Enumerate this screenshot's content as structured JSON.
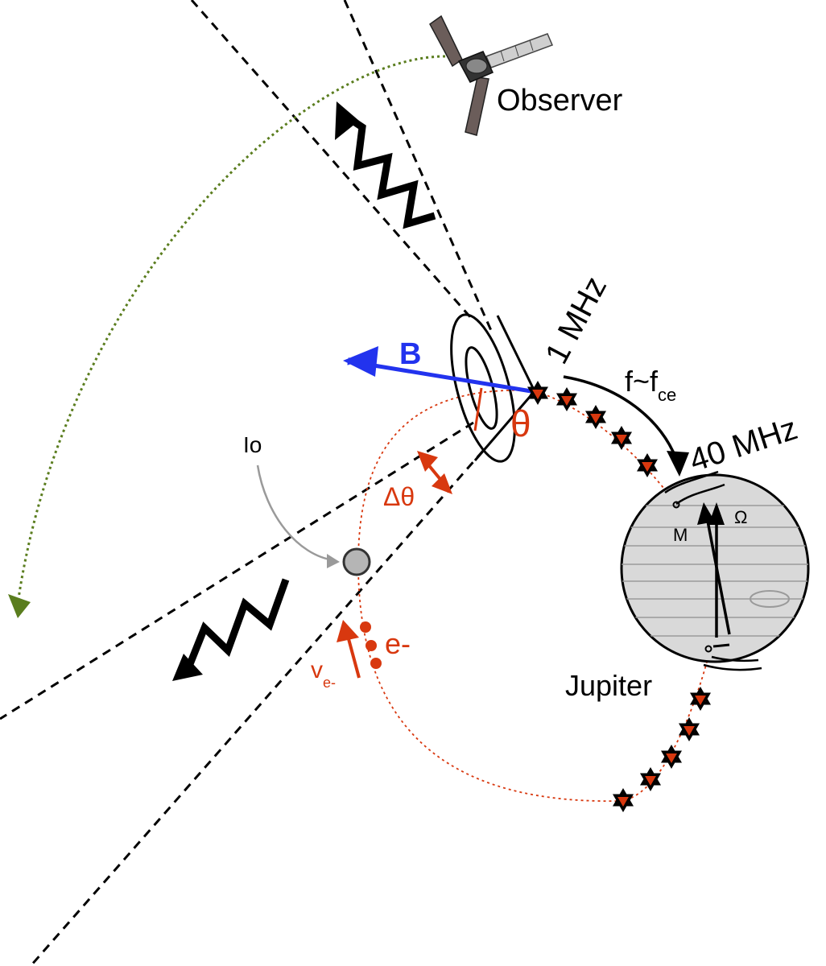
{
  "labels": {
    "observer": "Observer",
    "b_field": "B",
    "theta": "θ",
    "delta_theta": "Δθ",
    "io": "Io",
    "electrons": "e-",
    "velocity_main": "v",
    "velocity_sub": "e-",
    "freq_low": "1 MHz",
    "freq_relation_main": "f~f",
    "freq_relation_sub": "ce",
    "freq_high": "40 MHz",
    "jupiter": "Jupiter",
    "magnetic_axis": "M",
    "rotation_axis": "Ω"
  },
  "colors": {
    "b_field": "#2233ee",
    "electrons": "#d8380f",
    "trajectory": "#5a7d1e",
    "dashed_lines": "#000000",
    "emission_star": "#d8380f",
    "jupiter_fill": "#d9d9d9",
    "io_fill": "#b5b5b5",
    "spacecraft_panel": "#6b5d5a"
  },
  "icons": {
    "observer": "juno-spacecraft-icon",
    "io": "io-moon-icon",
    "jupiter": "jupiter-planet-icon",
    "emission": "emission-star-icon",
    "wave": "radio-wave-icon"
  }
}
